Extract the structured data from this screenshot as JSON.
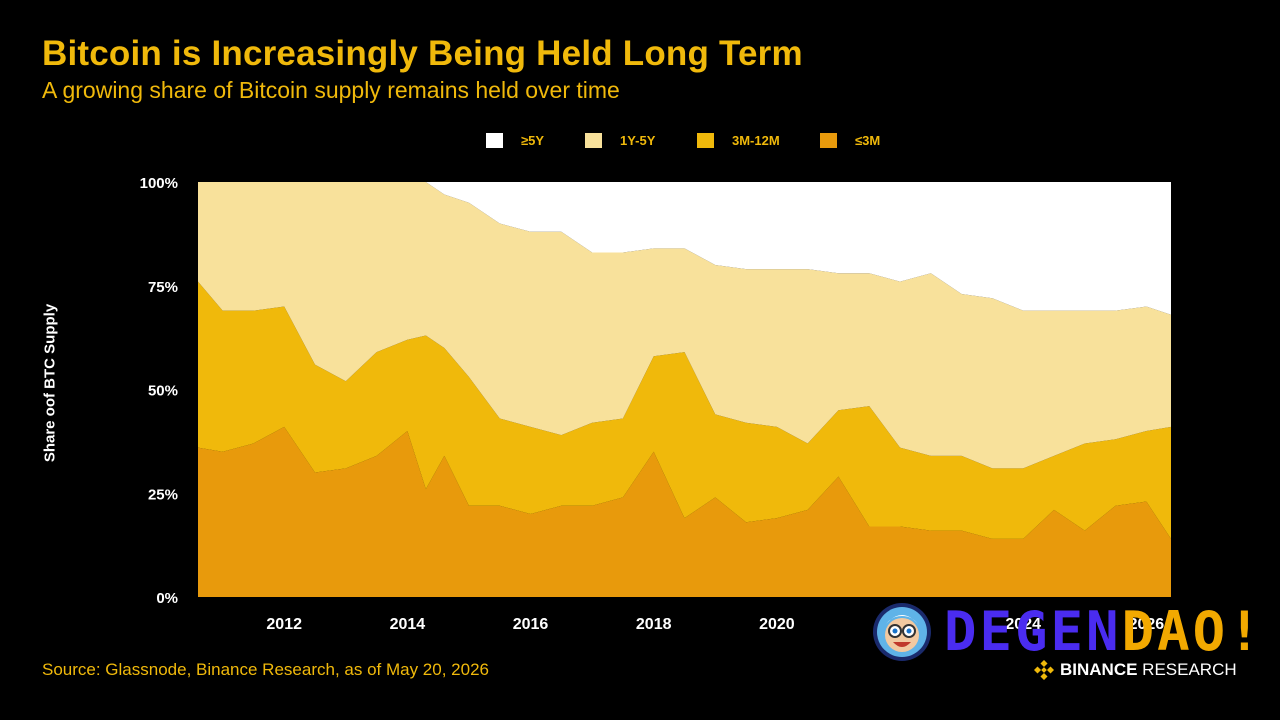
{
  "header": {
    "title": "Bitcoin is Increasingly Being Held Long Term",
    "subtitle": "A growing share of Bitcoin supply remains held over time"
  },
  "footer": {
    "source": "Source: Glassnode, Binance Research, as of May 20, 2026",
    "brand_part1": "BINANCE",
    "brand_part2": " RESEARCH"
  },
  "watermark": {
    "text_part1": "DEGEN",
    "text_part2": "DAO!",
    "icon": "cartoon-avatar-icon"
  },
  "colors": {
    "background": "#000000",
    "accent": "#F0B90B",
    "ge5y": "#FFFFFF",
    "y1to5": "#F8E19B",
    "m3to12": "#F0B90B",
    "le3m": "#E89A0C"
  },
  "chart_data": {
    "type": "area",
    "stacked": true,
    "title": "Bitcoin is Increasingly Being Held Long Term",
    "subtitle": "A growing share of Bitcoin supply remains held over time",
    "ylabel": "Share oof BTC Supply",
    "xlabel": "",
    "ylim": [
      0,
      100
    ],
    "xlim": [
      2010.6,
      2026.4
    ],
    "yticks": [
      0,
      25,
      50,
      75,
      100
    ],
    "ytick_labels": [
      "0%",
      "25%",
      "50%",
      "75%",
      "100%"
    ],
    "xticks": [
      2012,
      2014,
      2016,
      2018,
      2020,
      2024,
      2026
    ],
    "xtick_labels": [
      "2012",
      "2014",
      "2016",
      "2018",
      "2020",
      "2024",
      "2026"
    ],
    "legend": [
      "≥5Y",
      "1Y-5Y",
      "3M-12M",
      "≤3M"
    ],
    "legend_position": "top",
    "grid": false,
    "x": [
      2010.6,
      2011.0,
      2011.5,
      2012.0,
      2012.5,
      2013.0,
      2013.5,
      2014.0,
      2014.3,
      2014.6,
      2015.0,
      2015.5,
      2016.0,
      2016.5,
      2017.0,
      2017.5,
      2018.0,
      2018.5,
      2019.0,
      2019.5,
      2020.0,
      2020.5,
      2021.0,
      2021.5,
      2022.0,
      2022.5,
      2023.0,
      2023.5,
      2024.0,
      2024.5,
      2025.0,
      2025.5,
      2026.0,
      2026.4
    ],
    "series": [
      {
        "name": "≤3M",
        "values": [
          36,
          35,
          37,
          41,
          30,
          31,
          34,
          40,
          26,
          34,
          22,
          22,
          20,
          22,
          22,
          24,
          35,
          19,
          24,
          18,
          19,
          21,
          29,
          17,
          17,
          16,
          16,
          14,
          14,
          21,
          16,
          22,
          23,
          14
        ]
      },
      {
        "name": "3M-12M",
        "values": [
          40,
          34,
          32,
          29,
          26,
          21,
          25,
          22,
          37,
          26,
          31,
          21,
          21,
          17,
          20,
          19,
          23,
          40,
          20,
          24,
          22,
          16,
          16,
          29,
          19,
          18,
          18,
          17,
          17,
          13,
          21,
          16,
          17,
          27
        ]
      },
      {
        "name": "1Y-5Y",
        "values": [
          24,
          31,
          31,
          30,
          44,
          48,
          41,
          38,
          37,
          37,
          42,
          47,
          47,
          49,
          41,
          40,
          26,
          25,
          36,
          37,
          38,
          42,
          33,
          32,
          40,
          44,
          39,
          41,
          38,
          35,
          32,
          31,
          30,
          27
        ]
      },
      {
        "name": "≥5Y",
        "values": [
          0,
          0,
          0,
          0,
          0,
          0,
          0,
          0,
          0,
          3,
          5,
          10,
          12,
          12,
          17,
          17,
          16,
          16,
          20,
          21,
          21,
          21,
          22,
          22,
          24,
          22,
          27,
          28,
          31,
          31,
          31,
          31,
          30,
          32
        ]
      }
    ]
  }
}
